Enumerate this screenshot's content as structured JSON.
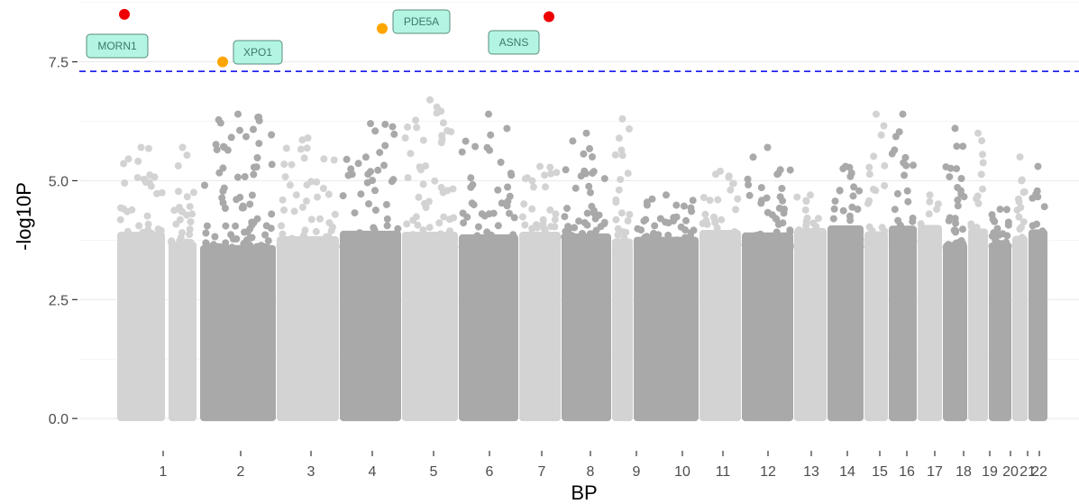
{
  "chart_data": {
    "type": "scatter",
    "subtype": "manhattan",
    "title": "",
    "xlabel": "BP",
    "ylabel": "-log10P",
    "ylim": [
      -0.3,
      8.8
    ],
    "yticks": [
      {
        "value": 0,
        "label": "0.0"
      },
      {
        "value": 2.5,
        "label": "2.5"
      },
      {
        "value": 5,
        "label": "5.0"
      },
      {
        "value": 7.5,
        "label": "7.5"
      }
    ],
    "grid": true,
    "significance_line": {
      "value": 7.3,
      "color": "#0000ee",
      "style": "dashed"
    },
    "colors": {
      "light": "#d3d3d3",
      "dark": "#a9a9a9",
      "red": "#ee0000",
      "orange": "#ffa500",
      "label_fill": "#b3f5e3",
      "label_border": "#5a8c7c"
    },
    "chromosomes": [
      {
        "label": "1",
        "peak": 5.7
      },
      {
        "label": "2",
        "peak": 6.4
      },
      {
        "label": "3",
        "peak": 5.9
      },
      {
        "label": "4",
        "peak": 6.2
      },
      {
        "label": "5",
        "peak": 6.7
      },
      {
        "label": "6",
        "peak": 6.4
      },
      {
        "label": "7",
        "peak": 5.3
      },
      {
        "label": "8",
        "peak": 6.0
      },
      {
        "label": "9",
        "peak": 6.3
      },
      {
        "label": "10",
        "peak": 4.7
      },
      {
        "label": "11",
        "peak": 5.2
      },
      {
        "label": "12",
        "peak": 5.7
      },
      {
        "label": "13",
        "peak": 4.7
      },
      {
        "label": "14",
        "peak": 5.3
      },
      {
        "label": "15",
        "peak": 6.4
      },
      {
        "label": "16",
        "peak": 6.4
      },
      {
        "label": "17",
        "peak": 4.7
      },
      {
        "label": "18",
        "peak": 6.1
      },
      {
        "label": "19",
        "peak": 6.0
      },
      {
        "label": "20",
        "peak": 4.4
      },
      {
        "label": "21",
        "peak": 5.5
      },
      {
        "label": "22",
        "peak": 5.3
      }
    ],
    "highlighted": [
      {
        "gene": "MORN1",
        "chrom": "1",
        "y": 8.5,
        "color": "red"
      },
      {
        "gene": "XPO1",
        "chrom": "2",
        "y": 7.5,
        "color": "orange"
      },
      {
        "gene": "PDE5A",
        "chrom": "4",
        "y": 8.2,
        "color": "orange"
      },
      {
        "gene": "ASNS",
        "chrom": "7",
        "y": 8.45,
        "color": "red"
      }
    ]
  }
}
